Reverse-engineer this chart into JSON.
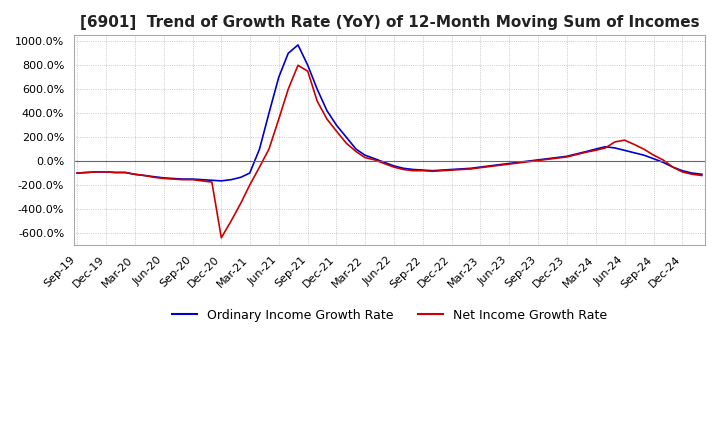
{
  "title": "[6901]  Trend of Growth Rate (YoY) of 12-Month Moving Sum of Incomes",
  "title_fontsize": 11,
  "ylim": [
    -700,
    1050
  ],
  "yticks": [
    -600,
    -400,
    -200,
    0,
    200,
    400,
    600,
    800,
    1000
  ],
  "background_color": "#ffffff",
  "plot_background": "#ffffff",
  "grid_color": "#aaaaaa",
  "ordinary_color": "#0000cc",
  "net_color": "#cc0000",
  "legend_labels": [
    "Ordinary Income Growth Rate",
    "Net Income Growth Rate"
  ],
  "ordinary_income": [
    -100,
    -95,
    -90,
    -90,
    -95,
    -95,
    -110,
    -120,
    -130,
    -140,
    -145,
    -150,
    -150,
    -155,
    -160,
    -165,
    -155,
    -135,
    -100,
    100,
    400,
    700,
    900,
    970,
    800,
    600,
    420,
    300,
    200,
    100,
    50,
    20,
    -10,
    -40,
    -60,
    -70,
    -75,
    -80,
    -75,
    -70,
    -65,
    -60,
    -50,
    -40,
    -30,
    -20,
    -10,
    0,
    10,
    20,
    30,
    40,
    60,
    80,
    100,
    120,
    110,
    90,
    70,
    50,
    20,
    -10,
    -50,
    -80,
    -100,
    -110
  ],
  "net_income": [
    -100,
    -95,
    -90,
    -90,
    -95,
    -95,
    -110,
    -120,
    -135,
    -145,
    -150,
    -155,
    -155,
    -165,
    -175,
    -640,
    -500,
    -350,
    -200,
    -50,
    100,
    350,
    600,
    800,
    750,
    500,
    350,
    250,
    150,
    80,
    30,
    10,
    -20,
    -50,
    -70,
    -80,
    -80,
    -85,
    -80,
    -75,
    -70,
    -65,
    -55,
    -45,
    -35,
    -25,
    -15,
    -5,
    5,
    15,
    25,
    35,
    55,
    75,
    90,
    110,
    160,
    175,
    140,
    100,
    50,
    10,
    -50,
    -90,
    -110,
    -120
  ]
}
